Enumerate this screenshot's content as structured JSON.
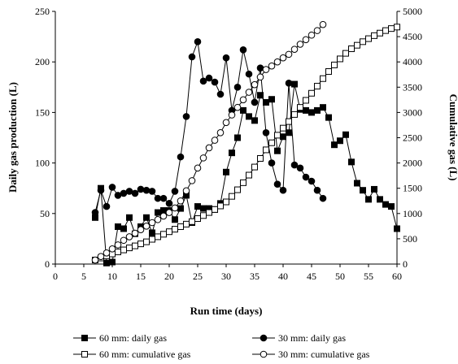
{
  "chart_data": {
    "type": "line",
    "xlabel": "Run time (days)",
    "ylabel_left": "Daily gas production (L)",
    "ylabel_right": "Cumulative gas (L)",
    "x_axis": {
      "min": 0,
      "max": 60,
      "ticks": [
        0,
        5,
        10,
        15,
        20,
        25,
        30,
        35,
        40,
        45,
        50,
        55,
        60
      ]
    },
    "y_left_axis": {
      "min": 0,
      "max": 250,
      "ticks": [
        0,
        50,
        100,
        150,
        200,
        250
      ]
    },
    "y_right_axis": {
      "min": 0,
      "max": 5000,
      "ticks": [
        0,
        500,
        1000,
        1500,
        2000,
        2500,
        3000,
        3500,
        4000,
        4500,
        5000
      ]
    },
    "grid": false,
    "legend_position": "bottom",
    "series": [
      {
        "name": "60 mm: daily gas",
        "axis": "left",
        "marker": "square-filled",
        "points": [
          [
            7,
            46
          ],
          [
            8,
            75
          ],
          [
            9,
            1
          ],
          [
            10,
            2
          ],
          [
            11,
            37
          ],
          [
            12,
            35
          ],
          [
            13,
            46
          ],
          [
            14,
            30
          ],
          [
            15,
            37
          ],
          [
            16,
            46
          ],
          [
            17,
            31
          ],
          [
            18,
            51
          ],
          [
            19,
            53
          ],
          [
            20,
            53
          ],
          [
            21,
            44
          ],
          [
            22,
            55
          ],
          [
            23,
            68
          ],
          [
            24,
            41
          ],
          [
            25,
            57
          ],
          [
            26,
            55
          ],
          [
            27,
            55
          ],
          [
            28,
            54
          ],
          [
            29,
            60
          ],
          [
            30,
            91
          ],
          [
            31,
            110
          ],
          [
            32,
            125
          ],
          [
            33,
            152
          ],
          [
            34,
            146
          ],
          [
            35,
            142
          ],
          [
            36,
            167
          ],
          [
            37,
            160
          ],
          [
            38,
            163
          ],
          [
            39,
            112
          ],
          [
            40,
            126
          ],
          [
            41,
            130
          ],
          [
            42,
            178
          ],
          [
            43,
            153
          ],
          [
            44,
            152
          ],
          [
            45,
            150
          ],
          [
            46,
            152
          ],
          [
            47,
            155
          ],
          [
            48,
            145
          ],
          [
            49,
            118
          ],
          [
            50,
            122
          ],
          [
            51,
            128
          ],
          [
            52,
            101
          ],
          [
            53,
            80
          ],
          [
            54,
            73
          ],
          [
            55,
            64
          ],
          [
            56,
            74
          ],
          [
            57,
            64
          ],
          [
            58,
            59
          ],
          [
            59,
            57
          ],
          [
            60,
            35
          ]
        ]
      },
      {
        "name": "30 mm: daily gas",
        "axis": "left",
        "marker": "circle-filled",
        "points": [
          [
            7,
            51
          ],
          [
            8,
            73
          ],
          [
            9,
            57
          ],
          [
            10,
            76
          ],
          [
            11,
            68
          ],
          [
            12,
            70
          ],
          [
            13,
            72
          ],
          [
            14,
            70
          ],
          [
            15,
            74
          ],
          [
            16,
            73
          ],
          [
            17,
            72
          ],
          [
            18,
            65
          ],
          [
            19,
            65
          ],
          [
            20,
            60
          ],
          [
            21,
            72
          ],
          [
            22,
            106
          ],
          [
            23,
            146
          ],
          [
            24,
            205
          ],
          [
            25,
            220
          ],
          [
            26,
            181
          ],
          [
            27,
            184
          ],
          [
            28,
            180
          ],
          [
            29,
            168
          ],
          [
            30,
            204
          ],
          [
            31,
            152
          ],
          [
            32,
            175
          ],
          [
            33,
            212
          ],
          [
            34,
            188
          ],
          [
            35,
            160
          ],
          [
            36,
            194
          ],
          [
            37,
            130
          ],
          [
            38,
            100
          ],
          [
            39,
            79
          ],
          [
            40,
            73
          ],
          [
            41,
            179
          ],
          [
            42,
            98
          ],
          [
            43,
            95
          ],
          [
            44,
            86
          ],
          [
            45,
            82
          ],
          [
            46,
            73
          ],
          [
            47,
            65
          ]
        ]
      },
      {
        "name": "60 mm: cumulative gas",
        "axis": "right",
        "marker": "square-open",
        "points": [
          [
            7,
            80
          ],
          [
            8,
            120
          ],
          [
            9,
            160
          ],
          [
            10,
            200
          ],
          [
            11,
            240
          ],
          [
            12,
            280
          ],
          [
            13,
            320
          ],
          [
            14,
            360
          ],
          [
            15,
            400
          ],
          [
            16,
            440
          ],
          [
            17,
            490
          ],
          [
            18,
            540
          ],
          [
            19,
            590
          ],
          [
            20,
            640
          ],
          [
            21,
            690
          ],
          [
            22,
            740
          ],
          [
            23,
            790
          ],
          [
            24,
            840
          ],
          [
            25,
            900
          ],
          [
            26,
            960
          ],
          [
            27,
            1020
          ],
          [
            28,
            1080
          ],
          [
            29,
            1150
          ],
          [
            30,
            1230
          ],
          [
            31,
            1340
          ],
          [
            32,
            1470
          ],
          [
            33,
            1610
          ],
          [
            34,
            1760
          ],
          [
            35,
            1920
          ],
          [
            36,
            2090
          ],
          [
            37,
            2260
          ],
          [
            38,
            2400
          ],
          [
            39,
            2550
          ],
          [
            40,
            2690
          ],
          [
            41,
            2820
          ],
          [
            42,
            2960
          ],
          [
            43,
            3100
          ],
          [
            44,
            3240
          ],
          [
            45,
            3380
          ],
          [
            46,
            3520
          ],
          [
            47,
            3670
          ],
          [
            48,
            3810
          ],
          [
            49,
            3940
          ],
          [
            50,
            4060
          ],
          [
            51,
            4170
          ],
          [
            52,
            4260
          ],
          [
            53,
            4330
          ],
          [
            54,
            4400
          ],
          [
            55,
            4460
          ],
          [
            56,
            4520
          ],
          [
            57,
            4570
          ],
          [
            58,
            4620
          ],
          [
            59,
            4660
          ],
          [
            60,
            4690
          ]
        ]
      },
      {
        "name": "30 mm: cumulative gas",
        "axis": "right",
        "marker": "circle-open",
        "points": [
          [
            7,
            80
          ],
          [
            8,
            150
          ],
          [
            9,
            220
          ],
          [
            10,
            300
          ],
          [
            11,
            380
          ],
          [
            12,
            470
          ],
          [
            13,
            540
          ],
          [
            14,
            610
          ],
          [
            15,
            680
          ],
          [
            16,
            750
          ],
          [
            17,
            820
          ],
          [
            18,
            880
          ],
          [
            19,
            950
          ],
          [
            20,
            1020
          ],
          [
            21,
            1110
          ],
          [
            22,
            1250
          ],
          [
            23,
            1450
          ],
          [
            24,
            1650
          ],
          [
            25,
            1900
          ],
          [
            26,
            2100
          ],
          [
            27,
            2300
          ],
          [
            28,
            2450
          ],
          [
            29,
            2600
          ],
          [
            30,
            2800
          ],
          [
            31,
            2950
          ],
          [
            32,
            3100
          ],
          [
            33,
            3250
          ],
          [
            34,
            3400
          ],
          [
            35,
            3550
          ],
          [
            36,
            3700
          ],
          [
            37,
            3850
          ],
          [
            38,
            3920
          ],
          [
            39,
            4000
          ],
          [
            40,
            4080
          ],
          [
            41,
            4150
          ],
          [
            42,
            4250
          ],
          [
            43,
            4350
          ],
          [
            44,
            4440
          ],
          [
            45,
            4530
          ],
          [
            46,
            4620
          ],
          [
            47,
            4740
          ]
        ]
      }
    ]
  }
}
